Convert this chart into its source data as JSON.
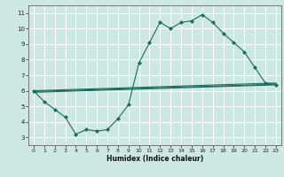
{
  "xlabel": "Humidex (Indice chaleur)",
  "xlim": [
    -0.5,
    23.5
  ],
  "ylim": [
    2.5,
    11.5
  ],
  "xticks": [
    0,
    1,
    2,
    3,
    4,
    5,
    6,
    7,
    8,
    9,
    10,
    11,
    12,
    13,
    14,
    15,
    16,
    17,
    18,
    19,
    20,
    21,
    22,
    23
  ],
  "yticks": [
    3,
    4,
    5,
    6,
    7,
    8,
    9,
    10,
    11
  ],
  "bg_color": "#cde8e2",
  "line_color": "#1a6b5a",
  "grid_color": "#ffffff",
  "main_x": [
    0,
    1,
    2,
    3,
    4,
    5,
    6,
    7,
    8,
    9,
    10,
    11,
    12,
    13,
    14,
    15,
    16,
    17,
    18,
    19,
    20,
    21,
    22,
    23
  ],
  "main_y": [
    6.0,
    5.3,
    4.8,
    4.3,
    3.2,
    3.5,
    3.4,
    3.5,
    4.2,
    5.1,
    7.8,
    9.1,
    10.4,
    10.0,
    10.4,
    10.5,
    10.9,
    10.4,
    9.7,
    9.1,
    8.5,
    7.5,
    6.5,
    6.4
  ],
  "trend1_x": [
    0,
    23
  ],
  "trend1_y": [
    6.0,
    6.5
  ],
  "trend2_x": [
    0,
    23
  ],
  "trend2_y": [
    5.95,
    6.42
  ],
  "trend3_x": [
    0,
    23
  ],
  "trend3_y": [
    5.9,
    6.38
  ]
}
